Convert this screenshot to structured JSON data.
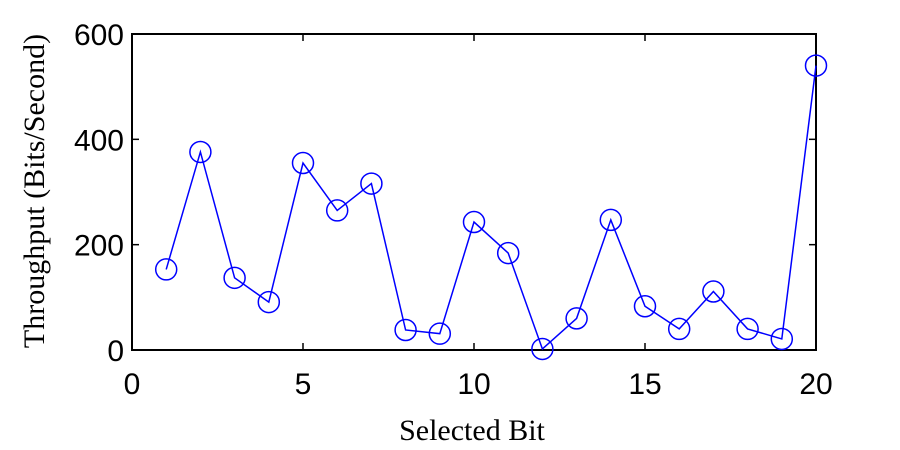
{
  "chart_data": {
    "type": "line",
    "xlabel": "Selected Bit",
    "ylabel": "Throughput (Bits/Second)",
    "xlim": [
      0,
      20
    ],
    "ylim": [
      0,
      600
    ],
    "xticks": [
      0,
      5,
      10,
      15,
      20
    ],
    "yticks": [
      0,
      200,
      400,
      600
    ],
    "grid": false,
    "series": [
      {
        "color": "#0000ff",
        "marker": "circle",
        "x": [
          1,
          2,
          3,
          4,
          5,
          6,
          7,
          8,
          9,
          10,
          11,
          12,
          13,
          14,
          15,
          16,
          17,
          18,
          19,
          20
        ],
        "y": [
          153,
          376,
          137,
          91,
          355,
          265,
          316,
          38,
          31,
          243,
          184,
          2,
          60,
          247,
          83,
          40,
          111,
          40,
          21,
          540
        ]
      }
    ]
  }
}
